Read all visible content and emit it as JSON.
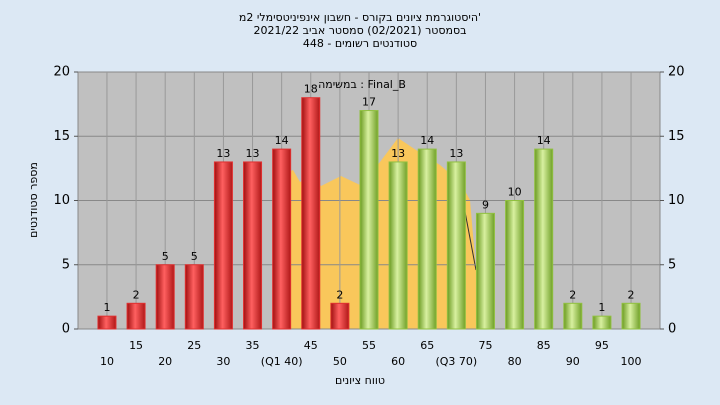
{
  "chart_data": {
    "type": "bar",
    "title": "היסטוגרמת ציונים בקורס - חשבון אינפיניטסימלי 2מ'",
    "subtitle": "בסמסטר (02/2021) סמסטר אביב 2021/22",
    "subtitle2": "סטודנטים רשומים - 448",
    "annotation": "במשימה : Final_B",
    "x_label": "טווח ציונים",
    "y_label": "מספר סטודנטים",
    "categories": [
      "10",
      "15",
      "20",
      "25",
      "30",
      "35",
      "(Q1 40)",
      "45",
      "50",
      "55",
      "60",
      "65",
      "(Q3 70)",
      "75",
      "80",
      "85",
      "90",
      "95",
      "100"
    ],
    "series": [
      {
        "colors": [
          "#e03030",
          "#e03030",
          "#e03030",
          "#e03030",
          "#e03030",
          "#e03030",
          "#e03030",
          "#e03030",
          "#e03030",
          "#90c040",
          "#90c040",
          "#90c040",
          "#90c040",
          "#90c040",
          "#90c040",
          "#90c040",
          "#90c040",
          "#90c040",
          "#90c040"
        ],
        "values": [
          1,
          2,
          5,
          5,
          13,
          13,
          14,
          18,
          2,
          17,
          13,
          14,
          13,
          9,
          10,
          14,
          2,
          1,
          2
        ]
      }
    ],
    "ylim": [
      0,
      20
    ],
    "yticks": [
      0,
      5,
      10,
      15,
      20
    ],
    "y2ticks": [
      0,
      5,
      10,
      15,
      20
    ],
    "grid": true
  }
}
